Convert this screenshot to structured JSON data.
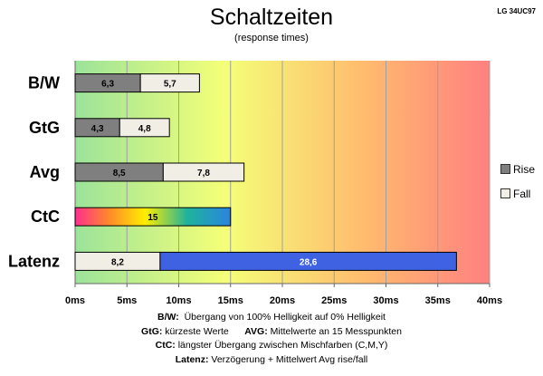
{
  "title": "Schaltzeiten",
  "subtitle": "(response times)",
  "model_label": "LG 34UC97",
  "legend": [
    {
      "label": "Rise",
      "color": "#7f7f7f"
    },
    {
      "label": "Fall",
      "color": "#f1eee6"
    }
  ],
  "notes": [
    {
      "key": "B/W",
      "text": "Übergang von 100% Helligkeit auf 0% Helligkeit"
    },
    {
      "key": "GtG",
      "text": "kürzeste Werte",
      "key2": "AVG",
      "text2": "Mittelwerte an 15 Messpunkten"
    },
    {
      "key": "CtC",
      "text": "längster Übergang zwischen Mischfarben (C,M,Y)"
    },
    {
      "key": "Latenz",
      "text": "Verzögerung + Mittelwert Avg rise/fall"
    }
  ],
  "chart_data": {
    "type": "bar",
    "orientation": "horizontal",
    "stacked": true,
    "title": "Schaltzeiten",
    "subtitle": "(response times)",
    "categories": [
      "B/W",
      "GtG",
      "Avg",
      "CtC",
      "Latenz"
    ],
    "series": [
      {
        "name": "Rise",
        "color": "#7f7f7f",
        "values": [
          6.3,
          4.3,
          8.5,
          null,
          null
        ],
        "labels": [
          "6,3",
          "4,3",
          "8,5",
          "",
          ""
        ]
      },
      {
        "name": "Fall",
        "color": "#f1eee6",
        "values": [
          5.7,
          4.8,
          7.8,
          null,
          8.2
        ],
        "labels": [
          "5,7",
          "4,8",
          "7,8",
          "",
          "8,2"
        ]
      },
      {
        "name": "CtC",
        "values": [
          null,
          null,
          null,
          15,
          null
        ],
        "labels": [
          "",
          "",
          "",
          "15",
          ""
        ]
      },
      {
        "name": "Latenz",
        "color": "#3f62e3",
        "values": [
          null,
          null,
          null,
          null,
          28.6
        ],
        "labels": [
          "",
          "",
          "",
          "",
          "28,6"
        ]
      }
    ],
    "xlim": [
      0,
      40
    ],
    "xticks": [
      0,
      5,
      10,
      15,
      20,
      25,
      30,
      35,
      40
    ],
    "xtick_labels": [
      "0ms",
      "5ms",
      "10ms",
      "15ms",
      "20ms",
      "25ms",
      "30ms",
      "35ms",
      "40ms"
    ],
    "grid": true,
    "legend_position": "right",
    "background_gradient": [
      "#9be39a",
      "#f4ff78",
      "#ffbb6e",
      "#ff8080"
    ]
  }
}
